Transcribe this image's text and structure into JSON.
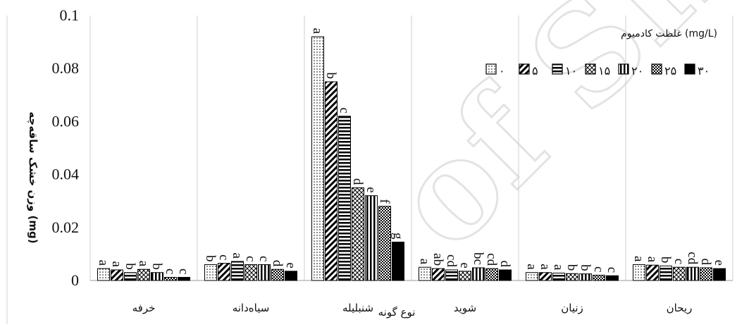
{
  "chart_data": {
    "type": "bar",
    "xlabel": "نوع گونه",
    "ylabel": "وزن خشک ساقه‌چه (mg)",
    "ylim": [
      0,
      0.1
    ],
    "yticks": [
      "0",
      "0.02",
      "0.04",
      "0.06",
      "0.08",
      "0.1"
    ],
    "grid": "vertical category separators",
    "legend": {
      "placement": "top-right",
      "title": "غلظت کادمیوم (mg/L)"
    },
    "categories": [
      "خرفه",
      "سیاه‌دانه",
      "شنبلیله",
      "شوید",
      "زنیان",
      "ریحان"
    ],
    "series": [
      {
        "name": "۰",
        "pattern": "dots",
        "values": [
          0.0045,
          0.006,
          0.092,
          0.005,
          0.003,
          0.006
        ],
        "letters": [
          "a",
          "b",
          "a",
          "a",
          "a",
          "a"
        ]
      },
      {
        "name": "۵",
        "pattern": "diagonal",
        "values": [
          0.004,
          0.0065,
          0.075,
          0.0045,
          0.003,
          0.0058
        ],
        "letters": [
          "a",
          "c",
          "b",
          "ab",
          "a",
          "a"
        ]
      },
      {
        "name": "۱۰",
        "pattern": "horizontal",
        "values": [
          0.003,
          0.0072,
          0.062,
          0.004,
          0.0028,
          0.0055
        ],
        "letters": [
          "b",
          "a",
          "c",
          "cd",
          "a",
          "b"
        ]
      },
      {
        "name": "۱۵",
        "pattern": "cross",
        "values": [
          0.0042,
          0.006,
          0.035,
          0.0035,
          0.0026,
          0.005
        ],
        "letters": [
          "a",
          "c",
          "d",
          "e",
          "b",
          "c"
        ]
      },
      {
        "name": "۲۰",
        "pattern": "vertical",
        "values": [
          0.003,
          0.006,
          0.032,
          0.0048,
          0.0025,
          0.005
        ],
        "letters": [
          "b",
          "c",
          "e",
          "bc",
          "b",
          "cd"
        ]
      },
      {
        "name": "۲۵",
        "pattern": "checker",
        "values": [
          0.0012,
          0.0042,
          0.028,
          0.0045,
          0.002,
          0.0048
        ],
        "letters": [
          "c",
          "d",
          "f",
          "cd",
          "c",
          "d"
        ]
      },
      {
        "name": "۳۰",
        "pattern": "solid",
        "values": [
          0.0012,
          0.0035,
          0.0145,
          0.004,
          0.0018,
          0.0045
        ],
        "letters": [
          "c",
          "e",
          "g",
          "d",
          "c",
          "e"
        ]
      }
    ]
  }
}
